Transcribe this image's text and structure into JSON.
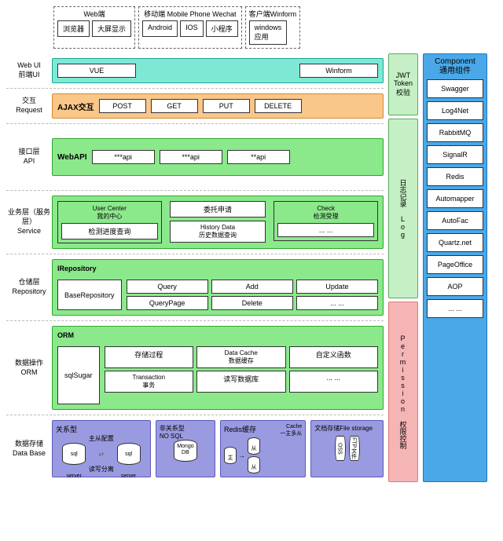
{
  "colors": {
    "teal_bg": "#7ee8d4",
    "teal_bd": "#1aa88f",
    "orange_bg": "#f9c78a",
    "orange_bd": "#d68a2e",
    "green_bg": "#8be88b",
    "green_bd": "#2ea82e",
    "purple_bg": "#9a9ae0",
    "purple_bd": "#5a5ac0",
    "blue_bg": "#4aa8e8",
    "blue_bd": "#1a78c8",
    "pink_bg": "#f5b5b5",
    "pink_bd": "#e07a7a",
    "green2_bg": "#c5f0c5",
    "green2_bd": "#5aaa5a"
  },
  "top": {
    "web": {
      "title": "Web端",
      "items": [
        "浏览器",
        "大屏显示"
      ]
    },
    "mobile": {
      "title": "移动端   Mobile Phone    Wechat",
      "items": [
        "Android",
        "IOS",
        "小程序"
      ]
    },
    "winform": {
      "title": "客户端Winform",
      "items": [
        "windows\n应用"
      ]
    }
  },
  "layers": {
    "webui": {
      "label1": "Web UI",
      "label2": "前端UI",
      "items": [
        "VUE",
        "Winform"
      ]
    },
    "request": {
      "label1": "交互",
      "label2": "Request",
      "lead": "AJAX交互",
      "items": [
        "POST",
        "GET",
        "PUT",
        "DELETE"
      ]
    },
    "api": {
      "label1": "接口层",
      "label2": "API",
      "lead": "WebAPI",
      "items": [
        "***api",
        "***api",
        "**api"
      ]
    },
    "service": {
      "label1": "业务层（服务层）",
      "label2": "Service",
      "g1": {
        "hdr": "User Center\n我的中心",
        "items": [
          "检测进度查询"
        ]
      },
      "mid": [
        "委托申请",
        "History Data\n历史数据查询"
      ],
      "g2": {
        "hdr": "Check\n检测受理",
        "items": [
          "... ..."
        ]
      }
    },
    "repo": {
      "label1": "仓储层",
      "label2": "Repository",
      "box": "IRepository",
      "lead": "BaseRepository",
      "row1": [
        "Query",
        "Add",
        "Update"
      ],
      "row2": [
        "QueryPage",
        "Delete",
        "... ..."
      ]
    },
    "orm": {
      "label1": "数据操作",
      "label2": "ORM",
      "box": "ORM",
      "lead": "sqlSugar",
      "row1": [
        "存储过程",
        "Data Cache\n数据缓存",
        "自定义函数"
      ],
      "row2": [
        "Transaction\n事务",
        "读写数据库",
        "... ..."
      ]
    },
    "db": {
      "label1": "数据存储",
      "label2": "Data Base",
      "rel": {
        "hdr": "关系型",
        "cfg": "主从配置",
        "sep": "读写分离",
        "c": "sql server"
      },
      "nosql": {
        "hdr": "非关系型\nNO SQL",
        "c": "Mongo\nDB"
      },
      "redis": {
        "hdr": "Redis缓存",
        "cache": "Cache\n一主多从",
        "m": "主",
        "s": "从"
      },
      "file": {
        "hdr": "文档存储File storage",
        "items": [
          "OSS",
          "FTP文件"
        ]
      }
    }
  },
  "pillars": {
    "jwt": "JWT\nToken\n校验",
    "log": "日志记录\nLog",
    "perm": "Permission\n权限控制"
  },
  "components": {
    "title": "Component\n通用组件",
    "items": [
      "Swagger",
      "Log4Net",
      "RabbitMQ",
      "SignalR",
      "Redis",
      "Automapper",
      "AutoFac",
      "Quartz.net",
      "PageOffice",
      "AOP",
      "... ..."
    ]
  }
}
